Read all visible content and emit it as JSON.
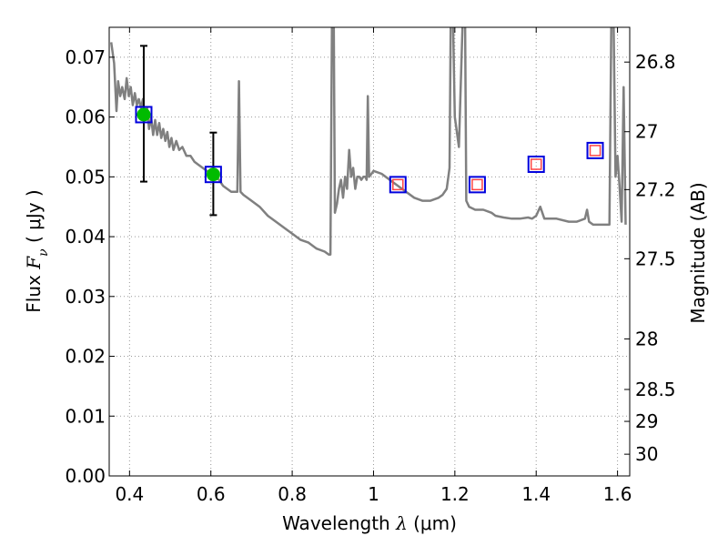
{
  "chart_data": {
    "type": "scatter",
    "xlabel": {
      "pre": "Wavelength  ",
      "sym": "λ",
      "unit": " (μm)"
    },
    "ylabel": {
      "pre": "Flux  ",
      "sym": "F",
      "sub": "ν",
      "unit": "  ( μJy )"
    },
    "y2label": "Magnitude (AB)",
    "xlim": [
      0.35,
      1.63
    ],
    "ylim": [
      0.0,
      0.075
    ],
    "grid": true,
    "xticks": [
      {
        "v": 0.4,
        "label": "0.4"
      },
      {
        "v": 0.6,
        "label": "0.6"
      },
      {
        "v": 0.8,
        "label": "0.8"
      },
      {
        "v": 1.0,
        "label": "1"
      },
      {
        "v": 1.2,
        "label": "1.2"
      },
      {
        "v": 1.4,
        "label": "1.4"
      },
      {
        "v": 1.6,
        "label": "1.6"
      }
    ],
    "yticks": [
      {
        "v": 0.0,
        "label": "0.00"
      },
      {
        "v": 0.01,
        "label": "0.01"
      },
      {
        "v": 0.02,
        "label": "0.02"
      },
      {
        "v": 0.03,
        "label": "0.03"
      },
      {
        "v": 0.04,
        "label": "0.04"
      },
      {
        "v": 0.05,
        "label": "0.05"
      },
      {
        "v": 0.06,
        "label": "0.06"
      },
      {
        "v": 0.07,
        "label": "0.07"
      }
    ],
    "y2ticks": [
      {
        "label": "26.8",
        "mag": 26.8
      },
      {
        "label": "27",
        "mag": 27.0
      },
      {
        "label": "27.2",
        "mag": 27.2
      },
      {
        "label": "27.5",
        "mag": 27.5
      },
      {
        "label": "28",
        "mag": 28.0
      },
      {
        "label": "28.5",
        "mag": 28.5
      },
      {
        "label": "29",
        "mag": 29.0
      },
      {
        "label": "30",
        "mag": 30.0
      }
    ],
    "series": [
      {
        "kind": "sed-model",
        "color": "#808080",
        "points": [
          [
            0.355,
            0.0725
          ],
          [
            0.362,
            0.069
          ],
          [
            0.368,
            0.061
          ],
          [
            0.372,
            0.066
          ],
          [
            0.377,
            0.0635
          ],
          [
            0.382,
            0.065
          ],
          [
            0.388,
            0.063
          ],
          [
            0.393,
            0.0665
          ],
          [
            0.398,
            0.0635
          ],
          [
            0.403,
            0.065
          ],
          [
            0.408,
            0.062
          ],
          [
            0.413,
            0.064
          ],
          [
            0.418,
            0.062
          ],
          [
            0.423,
            0.063
          ],
          [
            0.428,
            0.0615
          ],
          [
            0.433,
            0.063
          ],
          [
            0.438,
            0.06
          ],
          [
            0.443,
            0.0615
          ],
          [
            0.448,
            0.058
          ],
          [
            0.453,
            0.06
          ],
          [
            0.458,
            0.057
          ],
          [
            0.463,
            0.0595
          ],
          [
            0.468,
            0.057
          ],
          [
            0.473,
            0.059
          ],
          [
            0.478,
            0.0565
          ],
          [
            0.483,
            0.058
          ],
          [
            0.488,
            0.056
          ],
          [
            0.493,
            0.0575
          ],
          [
            0.498,
            0.055
          ],
          [
            0.503,
            0.0565
          ],
          [
            0.508,
            0.0545
          ],
          [
            0.515,
            0.056
          ],
          [
            0.522,
            0.0545
          ],
          [
            0.53,
            0.055
          ],
          [
            0.54,
            0.0535
          ],
          [
            0.55,
            0.0535
          ],
          [
            0.56,
            0.0525
          ],
          [
            0.57,
            0.052
          ],
          [
            0.58,
            0.0515
          ],
          [
            0.59,
            0.051
          ],
          [
            0.6,
            0.0505
          ],
          [
            0.61,
            0.05
          ],
          [
            0.62,
            0.0495
          ],
          [
            0.63,
            0.0485
          ],
          [
            0.64,
            0.048
          ],
          [
            0.65,
            0.0475
          ],
          [
            0.66,
            0.0475
          ],
          [
            0.665,
            0.0475
          ],
          [
            0.669,
            0.066
          ],
          [
            0.673,
            0.0475
          ],
          [
            0.68,
            0.047
          ],
          [
            0.7,
            0.046
          ],
          [
            0.72,
            0.045
          ],
          [
            0.74,
            0.0435
          ],
          [
            0.76,
            0.0425
          ],
          [
            0.78,
            0.0415
          ],
          [
            0.8,
            0.0405
          ],
          [
            0.82,
            0.0395
          ],
          [
            0.84,
            0.039
          ],
          [
            0.86,
            0.038
          ],
          [
            0.88,
            0.0375
          ],
          [
            0.89,
            0.037
          ],
          [
            0.894,
            0.037
          ],
          [
            0.898,
            0.078
          ],
          [
            0.902,
            0.078
          ],
          [
            0.905,
            0.044
          ],
          [
            0.91,
            0.0455
          ],
          [
            0.915,
            0.048
          ],
          [
            0.92,
            0.0495
          ],
          [
            0.925,
            0.0465
          ],
          [
            0.93,
            0.05
          ],
          [
            0.935,
            0.048
          ],
          [
            0.94,
            0.0545
          ],
          [
            0.945,
            0.05
          ],
          [
            0.95,
            0.0515
          ],
          [
            0.955,
            0.048
          ],
          [
            0.96,
            0.05
          ],
          [
            0.965,
            0.05
          ],
          [
            0.97,
            0.0495
          ],
          [
            0.975,
            0.05
          ],
          [
            0.98,
            0.05
          ],
          [
            0.983,
            0.0495
          ],
          [
            0.986,
            0.0635
          ],
          [
            0.989,
            0.05
          ],
          [
            0.995,
            0.0505
          ],
          [
            1.0,
            0.051
          ],
          [
            1.02,
            0.0505
          ],
          [
            1.04,
            0.0495
          ],
          [
            1.06,
            0.0485
          ],
          [
            1.08,
            0.0475
          ],
          [
            1.1,
            0.0465
          ],
          [
            1.12,
            0.046
          ],
          [
            1.14,
            0.046
          ],
          [
            1.16,
            0.0465
          ],
          [
            1.17,
            0.047
          ],
          [
            1.18,
            0.048
          ],
          [
            1.187,
            0.0515
          ],
          [
            1.19,
            0.078
          ],
          [
            1.195,
            0.078
          ],
          [
            1.2,
            0.06
          ],
          [
            1.21,
            0.055
          ],
          [
            1.22,
            0.078
          ],
          [
            1.225,
            0.078
          ],
          [
            1.228,
            0.046
          ],
          [
            1.235,
            0.045
          ],
          [
            1.25,
            0.0445
          ],
          [
            1.27,
            0.0445
          ],
          [
            1.29,
            0.044
          ],
          [
            1.3,
            0.0435
          ],
          [
            1.32,
            0.0432
          ],
          [
            1.34,
            0.043
          ],
          [
            1.36,
            0.043
          ],
          [
            1.38,
            0.0432
          ],
          [
            1.39,
            0.043
          ],
          [
            1.4,
            0.0435
          ],
          [
            1.41,
            0.045
          ],
          [
            1.42,
            0.043
          ],
          [
            1.45,
            0.043
          ],
          [
            1.48,
            0.0425
          ],
          [
            1.5,
            0.0425
          ],
          [
            1.52,
            0.043
          ],
          [
            1.525,
            0.0445
          ],
          [
            1.53,
            0.0425
          ],
          [
            1.54,
            0.042
          ],
          [
            1.57,
            0.042
          ],
          [
            1.58,
            0.042
          ],
          [
            1.585,
            0.078
          ],
          [
            1.59,
            0.078
          ],
          [
            1.595,
            0.05
          ],
          [
            1.6,
            0.0535
          ],
          [
            1.605,
            0.0485
          ],
          [
            1.61,
            0.0425
          ],
          [
            1.615,
            0.065
          ],
          [
            1.62,
            0.042
          ]
        ]
      },
      {
        "kind": "observed",
        "marker": "circle",
        "color": "#00bb00",
        "points": [
          {
            "x": 0.435,
            "y": 0.0604,
            "ylo": 0.0492,
            "yhi": 0.0719
          },
          {
            "x": 0.606,
            "y": 0.0504,
            "ylo": 0.0436,
            "yhi": 0.0574
          }
        ]
      },
      {
        "kind": "model-photometry",
        "marker": "square-open",
        "color": "#0000dd",
        "points": [
          [
            0.435,
            0.0604
          ],
          [
            0.606,
            0.0504
          ],
          [
            1.06,
            0.0487
          ],
          [
            1.255,
            0.0487
          ],
          [
            1.4,
            0.0521
          ],
          [
            1.545,
            0.0544
          ]
        ]
      },
      {
        "kind": "upper-limit",
        "marker": "square-open",
        "color": "#ff4444",
        "points": [
          [
            1.06,
            0.0487
          ],
          [
            1.255,
            0.0487
          ],
          [
            1.4,
            0.0521
          ],
          [
            1.545,
            0.0544
          ]
        ]
      }
    ]
  }
}
